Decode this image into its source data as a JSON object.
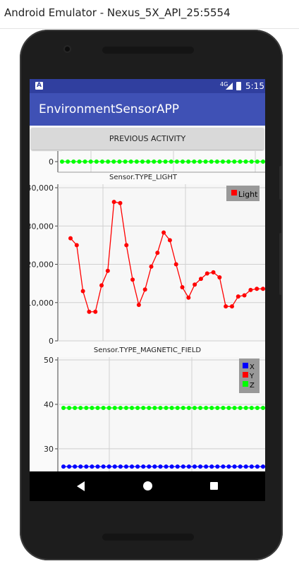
{
  "window": {
    "title": "Android Emulator - Nexus_5X_API_25:5554"
  },
  "status_bar": {
    "notification_icon": "A",
    "network": "4G",
    "time": "5:15"
  },
  "app_bar": {
    "title": "EnvironmentSensorAPP"
  },
  "buttons": {
    "previous": "PREVIOUS ACTIVITY"
  },
  "nav_bar": {
    "back_icon": "back-icon",
    "home_icon": "home-icon",
    "recents_icon": "recents-icon"
  },
  "chart_data": [
    {
      "type": "line",
      "title": "",
      "ylim": [
        -50,
        50
      ],
      "y_ticks": [
        0
      ],
      "series": [
        {
          "name": "",
          "color": "#00ff00",
          "values": [
            0,
            0,
            0,
            0,
            0,
            0,
            0,
            0,
            0,
            0,
            0,
            0,
            0,
            0,
            0,
            0,
            0,
            0,
            0,
            0,
            0,
            0,
            0,
            0,
            0,
            0,
            0,
            0,
            0,
            0,
            0,
            0,
            0,
            0,
            0,
            0
          ]
        }
      ]
    },
    {
      "type": "line",
      "title": "Sensor.TYPE_LIGHT",
      "ylim": [
        0,
        40000
      ],
      "y_ticks": [
        "0",
        "10,000",
        "20,000",
        "30,000",
        "40,000"
      ],
      "y_tick_values": [
        0,
        10000,
        20000,
        30000,
        40000
      ],
      "legend": "top-right",
      "series": [
        {
          "name": "Light",
          "color": "#ff0000",
          "values": [
            26800,
            25000,
            13000,
            7600,
            7600,
            14500,
            18300,
            36300,
            36000,
            25000,
            16000,
            9400,
            13400,
            19400,
            23000,
            28300,
            26300,
            20000,
            14000,
            11300,
            14700,
            16200,
            17600,
            17900,
            16600,
            9000,
            9000,
            11600,
            11900,
            13300,
            13600,
            13600
          ]
        }
      ]
    },
    {
      "type": "line",
      "title": "Sensor.TYPE_MAGNETIC_FIELD",
      "ylim": [
        23,
        50
      ],
      "y_ticks": [
        "30",
        "40",
        "50"
      ],
      "y_tick_values": [
        30,
        40,
        50
      ],
      "legend": "top-right",
      "series": [
        {
          "name": "X",
          "color": "#0000ff",
          "values": [
            26,
            26,
            26,
            26,
            26,
            26,
            26,
            26,
            26,
            26,
            26,
            26,
            26,
            26,
            26,
            26,
            26,
            26,
            26,
            26,
            26,
            26,
            26,
            26,
            26,
            26,
            26,
            26,
            26,
            26,
            26,
            26,
            26,
            26,
            26,
            26
          ]
        },
        {
          "name": "Y",
          "color": "#ff0000",
          "values": []
        },
        {
          "name": "Z",
          "color": "#00ff00",
          "values": [
            39.2,
            39.2,
            39.2,
            39.2,
            39.2,
            39.2,
            39.2,
            39.2,
            39.2,
            39.2,
            39.2,
            39.2,
            39.2,
            39.2,
            39.2,
            39.2,
            39.2,
            39.2,
            39.2,
            39.2,
            39.2,
            39.2,
            39.2,
            39.2,
            39.2,
            39.2,
            39.2,
            39.2,
            39.2,
            39.2,
            39.2,
            39.2,
            39.2,
            39.2,
            39.2,
            39.2
          ]
        }
      ]
    }
  ]
}
